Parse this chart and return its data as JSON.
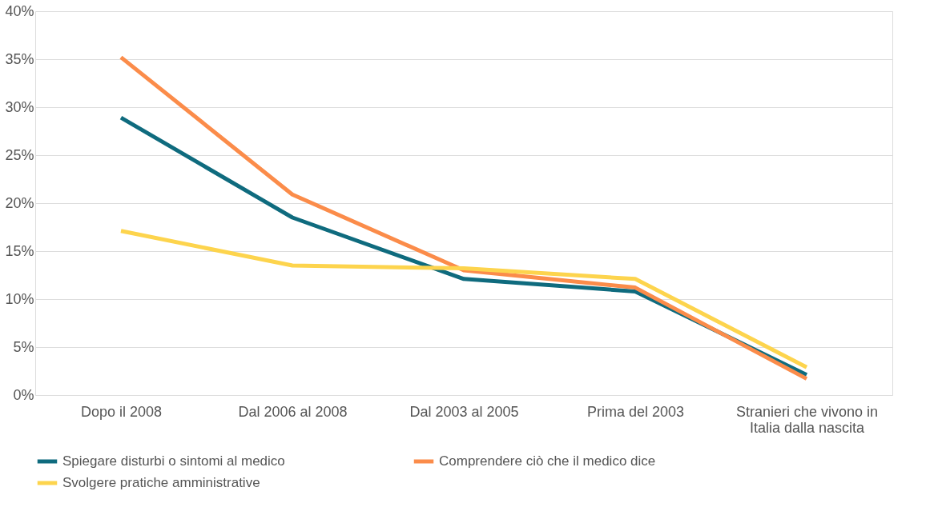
{
  "chart_data": {
    "type": "line",
    "categories": [
      "Dopo il 2008",
      "Dal 2006 al 2008",
      "Dal 2003 al 2005",
      "Prima del 2003",
      "Stranieri che vivono in Italia dalla nascita"
    ],
    "series": [
      {
        "name": "Spiegare disturbi o sintomi al medico",
        "color": "#0f6b7e",
        "values": [
          28.9,
          18.5,
          12.1,
          10.8,
          2.1
        ]
      },
      {
        "name": "Comprendere ciò che il medico dice",
        "color": "#fb8c4a",
        "values": [
          35.2,
          20.9,
          13.0,
          11.2,
          1.7
        ]
      },
      {
        "name": "Svolgere pratiche amministrative",
        "color": "#fdd44d",
        "values": [
          17.1,
          13.5,
          13.2,
          12.1,
          2.9
        ]
      }
    ],
    "ylim": [
      0,
      40
    ],
    "yticks": [
      {
        "value": 0,
        "label": "0%"
      },
      {
        "value": 5,
        "label": "5%"
      },
      {
        "value": 10,
        "label": "10%"
      },
      {
        "value": 15,
        "label": "15%"
      },
      {
        "value": 20,
        "label": "20%"
      },
      {
        "value": 25,
        "label": "25%"
      },
      {
        "value": 30,
        "label": "30%"
      },
      {
        "value": 35,
        "label": "35%"
      },
      {
        "value": 40,
        "label": "40%"
      }
    ],
    "grid": "y",
    "legend": "bottom",
    "marker": "none",
    "line_style": "solid"
  }
}
